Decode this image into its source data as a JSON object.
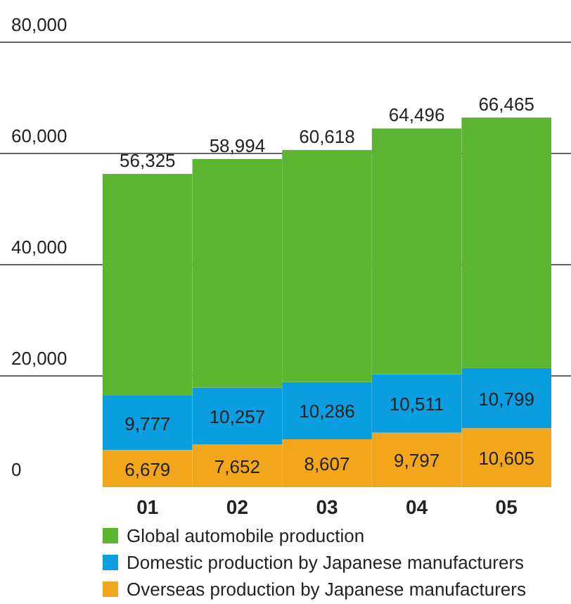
{
  "chart_data": {
    "type": "bar",
    "stacked": true,
    "categories": [
      "01",
      "02",
      "03",
      "04",
      "05"
    ],
    "series": [
      {
        "name": "Overseas production by Japanese manufacturers",
        "color": "#f2a61c",
        "values": [
          6679,
          7652,
          8607,
          9797,
          10605
        ],
        "value_labels": [
          "6,679",
          "7,652",
          "8,607",
          "9,797",
          "10,605"
        ]
      },
      {
        "name": "Domestic production by Japanese manufacturers",
        "color": "#0a9de0",
        "values": [
          9777,
          10257,
          10286,
          10511,
          10799
        ],
        "value_labels": [
          "9,777",
          "10,257",
          "10,286",
          "10,511",
          "10,799"
        ]
      },
      {
        "name": "Global automobile production",
        "color": "#5cb531",
        "values": [
          39869,
          41085,
          41725,
          44188,
          45061
        ]
      }
    ],
    "totals": [
      "56,325",
      "58,994",
      "60,618",
      "64,496",
      "66,465"
    ],
    "ylim": [
      0,
      80000
    ],
    "yticks": [
      {
        "value": 0,
        "label": "0"
      },
      {
        "value": 20000,
        "label": "20,000"
      },
      {
        "value": 40000,
        "label": "40,000"
      },
      {
        "value": 60000,
        "label": "60,000"
      },
      {
        "value": 80000,
        "label": "80,000"
      }
    ],
    "grid": "y",
    "legend": "bottom"
  }
}
